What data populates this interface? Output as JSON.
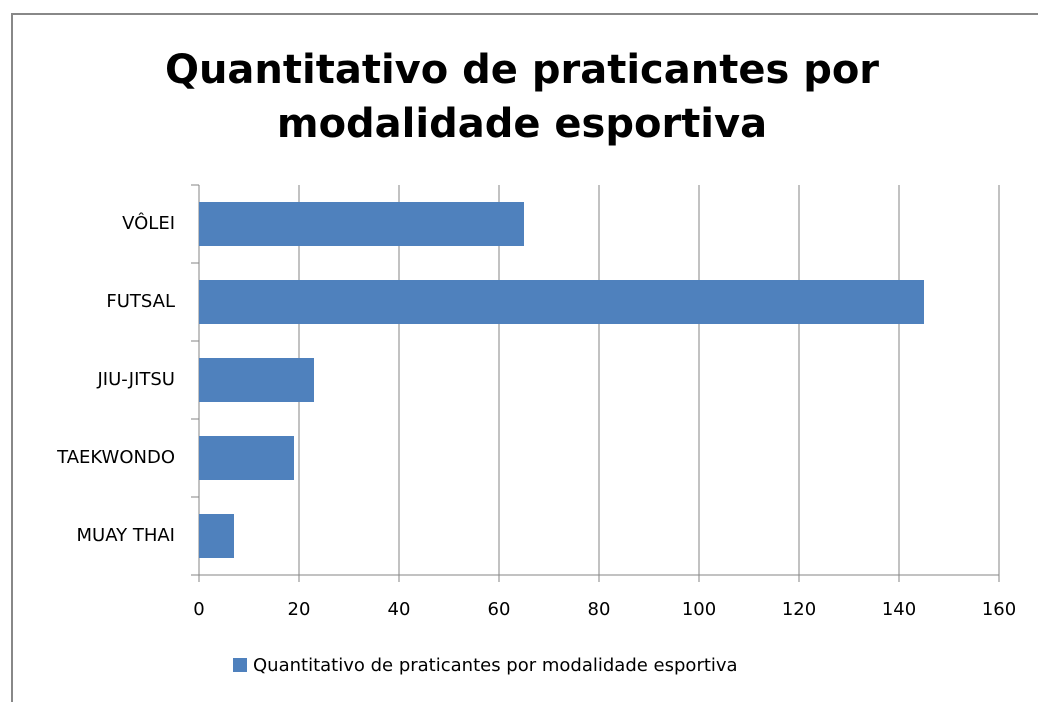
{
  "chart_data": {
    "type": "bar",
    "orientation": "horizontal",
    "title": [
      "Quantitativo de praticantes por",
      "modalidade esportiva"
    ],
    "categories": [
      "VÔLEI",
      "FUTSAL",
      "JIU-JITSU",
      "TAEKWONDO",
      "MUAY THAI"
    ],
    "series": [
      {
        "name": "Quantitativo de praticantes por modalidade esportiva",
        "color": "#4f81bd",
        "values": [
          65,
          145,
          23,
          19,
          7
        ]
      }
    ],
    "xlim": [
      0,
      160
    ],
    "xticks": [
      0,
      20,
      40,
      60,
      80,
      100,
      120,
      140,
      160
    ],
    "grid": true,
    "legend": "bottom"
  }
}
